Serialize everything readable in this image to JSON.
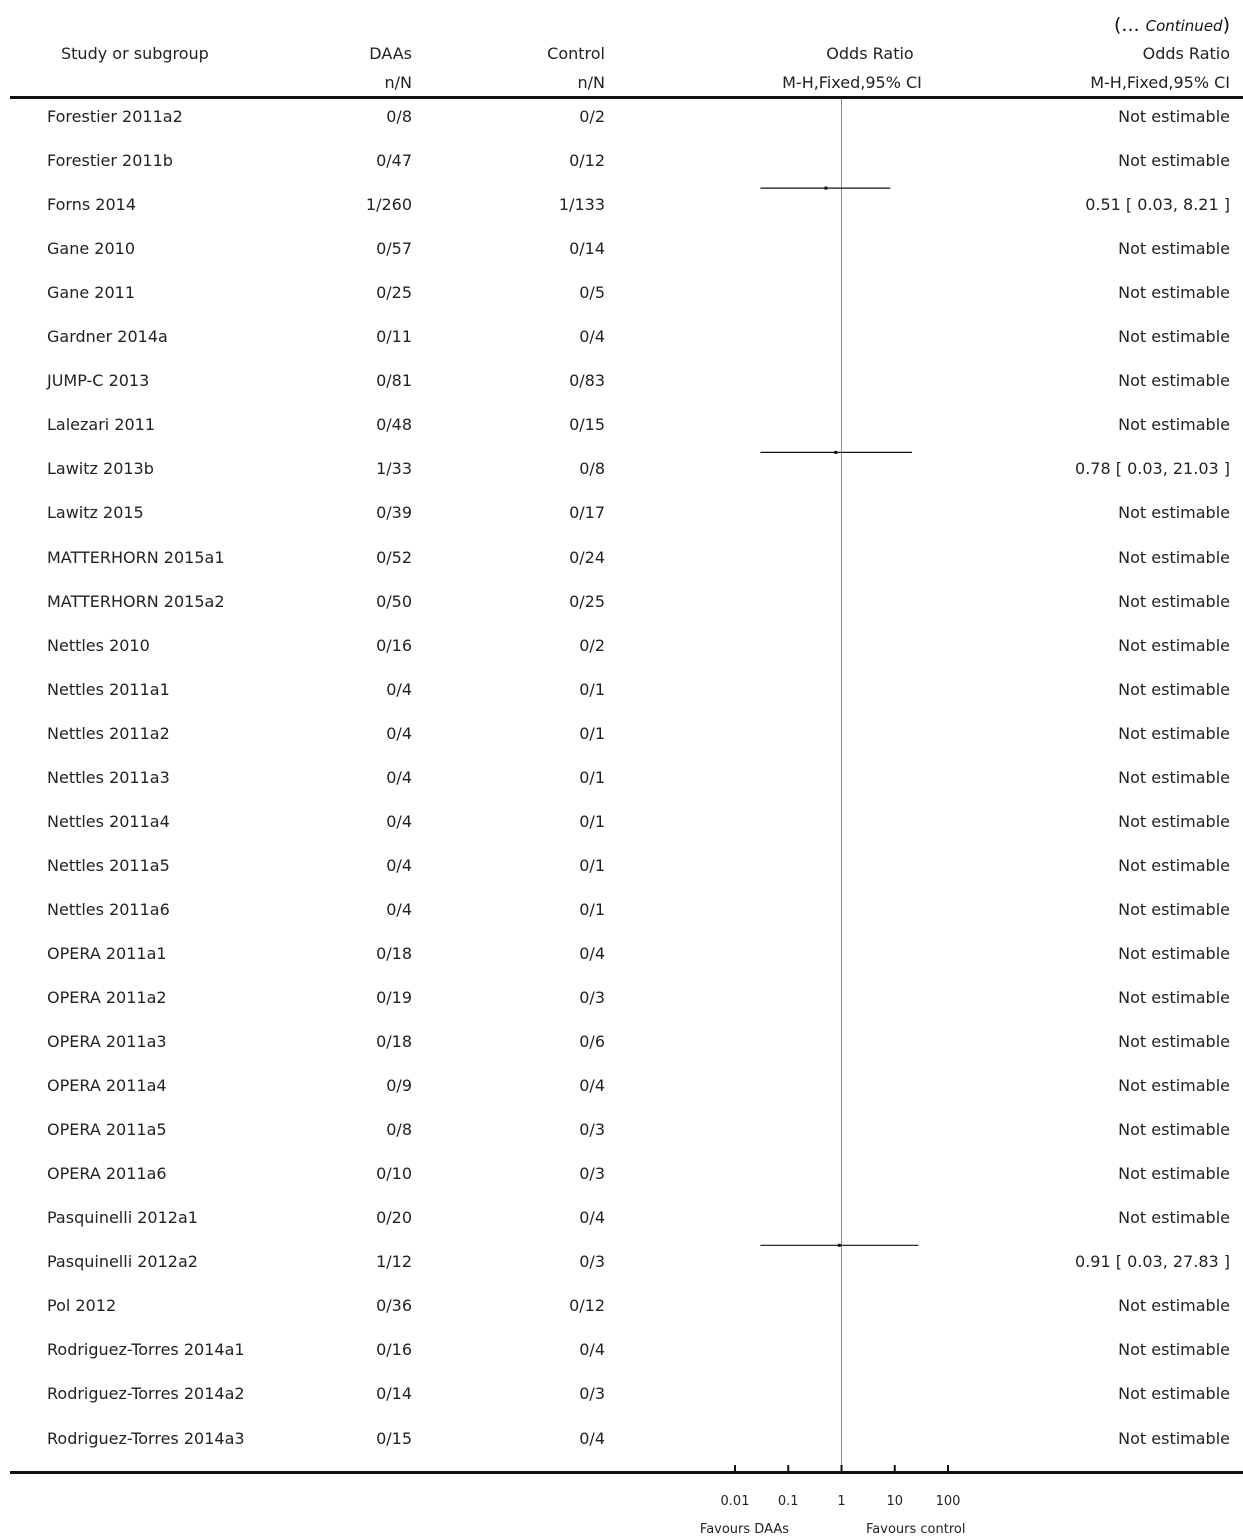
{
  "continued": {
    "prefix": "(... ",
    "label": "Continued",
    "suffix": ")"
  },
  "headers": {
    "study": "Study or subgroup",
    "daas": "DAAs",
    "daas_sub": "n/N",
    "control": "Control",
    "control_sub": "n/N",
    "or_plot": "Odds Ratio",
    "or_plot_sub": "M-H,Fixed,95% CI",
    "or_text": "Odds Ratio",
    "or_text_sub": "M-H,Fixed,95% CI"
  },
  "chart_data": {
    "type": "forest",
    "x_scale": "log",
    "xlim": [
      0.01,
      100
    ],
    "x_ticks": [
      0.01,
      0.1,
      1,
      10,
      100
    ],
    "x_tick_labels": [
      "0.01",
      "0.1",
      "1",
      "10",
      "100"
    ],
    "favours_left": "Favours DAAs",
    "favours_right": "Favours control",
    "rows": [
      {
        "study": "Forestier 2011a2",
        "daas": "0/8",
        "control": "0/2",
        "or_text": "Not estimable"
      },
      {
        "study": "Forestier 2011b",
        "daas": "0/47",
        "control": "0/12",
        "or_text": "Not estimable"
      },
      {
        "study": "Forns 2014",
        "daas": "1/260",
        "control": "1/133",
        "or_text": "0.51 [ 0.03, 8.21 ]",
        "or": 0.51,
        "lo": 0.03,
        "hi": 8.21
      },
      {
        "study": "Gane 2010",
        "daas": "0/57",
        "control": "0/14",
        "or_text": "Not estimable"
      },
      {
        "study": "Gane 2011",
        "daas": "0/25",
        "control": "0/5",
        "or_text": "Not estimable"
      },
      {
        "study": "Gardner 2014a",
        "daas": "0/11",
        "control": "0/4",
        "or_text": "Not estimable"
      },
      {
        "study": "JUMP-C 2013",
        "daas": "0/81",
        "control": "0/83",
        "or_text": "Not estimable"
      },
      {
        "study": "Lalezari 2011",
        "daas": "0/48",
        "control": "0/15",
        "or_text": "Not estimable"
      },
      {
        "study": "Lawitz 2013b",
        "daas": "1/33",
        "control": "0/8",
        "or_text": "0.78 [ 0.03, 21.03 ]",
        "or": 0.78,
        "lo": 0.03,
        "hi": 21.03
      },
      {
        "study": "Lawitz 2015",
        "daas": "0/39",
        "control": "0/17",
        "or_text": "Not estimable"
      },
      {
        "study": "MATTERHORN 2015a1",
        "daas": "0/52",
        "control": "0/24",
        "or_text": "Not estimable"
      },
      {
        "study": "MATTERHORN 2015a2",
        "daas": "0/50",
        "control": "0/25",
        "or_text": "Not estimable"
      },
      {
        "study": "Nettles 2010",
        "daas": "0/16",
        "control": "0/2",
        "or_text": "Not estimable"
      },
      {
        "study": "Nettles 2011a1",
        "daas": "0/4",
        "control": "0/1",
        "or_text": "Not estimable"
      },
      {
        "study": "Nettles 2011a2",
        "daas": "0/4",
        "control": "0/1",
        "or_text": "Not estimable"
      },
      {
        "study": "Nettles 2011a3",
        "daas": "0/4",
        "control": "0/1",
        "or_text": "Not estimable"
      },
      {
        "study": "Nettles 2011a4",
        "daas": "0/4",
        "control": "0/1",
        "or_text": "Not estimable"
      },
      {
        "study": "Nettles 2011a5",
        "daas": "0/4",
        "control": "0/1",
        "or_text": "Not estimable"
      },
      {
        "study": "Nettles 2011a6",
        "daas": "0/4",
        "control": "0/1",
        "or_text": "Not estimable"
      },
      {
        "study": "OPERA 2011a1",
        "daas": "0/18",
        "control": "0/4",
        "or_text": "Not estimable"
      },
      {
        "study": "OPERA 2011a2",
        "daas": "0/19",
        "control": "0/3",
        "or_text": "Not estimable"
      },
      {
        "study": "OPERA 2011a3",
        "daas": "0/18",
        "control": "0/6",
        "or_text": "Not estimable"
      },
      {
        "study": "OPERA 2011a4",
        "daas": "0/9",
        "control": "0/4",
        "or_text": "Not estimable"
      },
      {
        "study": "OPERA 2011a5",
        "daas": "0/8",
        "control": "0/3",
        "or_text": "Not estimable"
      },
      {
        "study": "OPERA 2011a6",
        "daas": "0/10",
        "control": "0/3",
        "or_text": "Not estimable"
      },
      {
        "study": "Pasquinelli 2012a1",
        "daas": "0/20",
        "control": "0/4",
        "or_text": "Not estimable"
      },
      {
        "study": "Pasquinelli 2012a2",
        "daas": "1/12",
        "control": "0/3",
        "or_text": "0.91 [ 0.03, 27.83 ]",
        "or": 0.91,
        "lo": 0.03,
        "hi": 27.83
      },
      {
        "study": "Pol 2012",
        "daas": "0/36",
        "control": "0/12",
        "or_text": "Not estimable"
      },
      {
        "study": "Rodriguez-Torres 2014a1",
        "daas": "0/16",
        "control": "0/4",
        "or_text": "Not estimable"
      },
      {
        "study": "Rodriguez-Torres 2014a2",
        "daas": "0/14",
        "control": "0/3",
        "or_text": "Not estimable"
      },
      {
        "study": "Rodriguez-Torres 2014a3",
        "daas": "0/15",
        "control": "0/4",
        "or_text": "Not estimable"
      }
    ]
  }
}
